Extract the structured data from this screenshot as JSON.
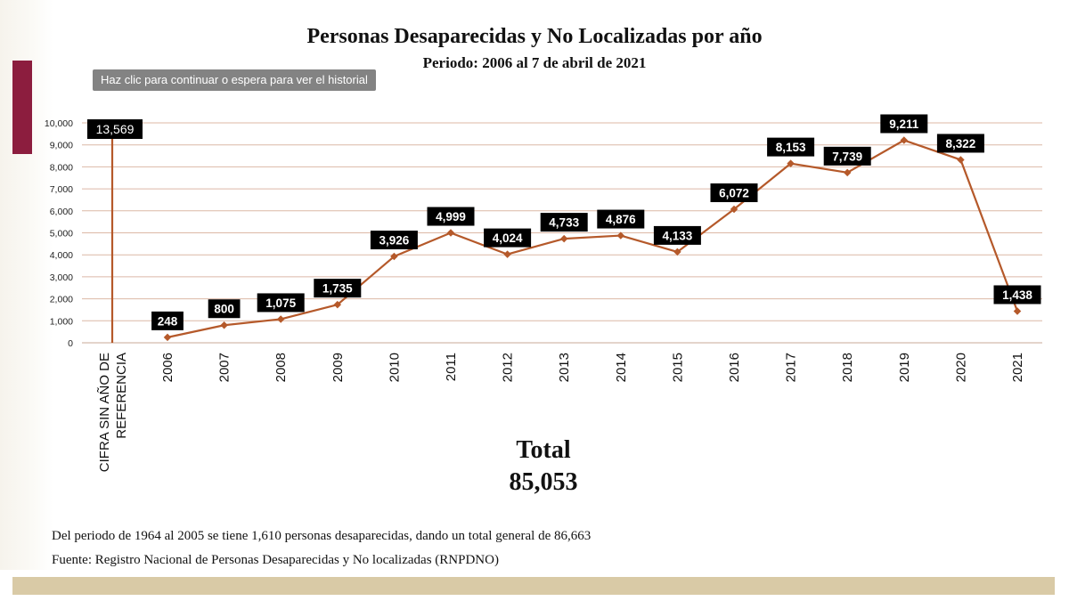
{
  "title": "Personas Desaparecidas y No Localizadas por año",
  "subtitle": "Periodo: 2006 al 7 de abril de 2021",
  "overlay": {
    "tooltip": "Haz clic para continuar o espera para ver el historial"
  },
  "colors": {
    "line": "#b5592a",
    "grid": "#dcb8a6",
    "label_bg": "#000000",
    "label_text": "#ffffff",
    "accent": "#8c1d3e",
    "footer_band": "#d9caa6"
  },
  "total": {
    "label": "Total",
    "value": "85,053"
  },
  "notes": {
    "period_note": "Del periodo de 1964 al 2005 se tiene 1,610 personas desaparecidas, dando un total general de 86,663",
    "source": "Fuente: Registro Nacional de Personas Desaparecidas y No localizadas (RNPDNO)"
  },
  "chart_data": {
    "type": "line",
    "title": "Personas Desaparecidas y No Localizadas por año",
    "xlabel": "",
    "ylabel": "",
    "ylim": [
      0,
      10000
    ],
    "yticks": [
      0,
      1000,
      2000,
      3000,
      4000,
      5000,
      6000,
      7000,
      8000,
      9000,
      10000
    ],
    "ytick_labels": [
      "0",
      "1,000",
      "2,000",
      "3,000",
      "4,000",
      "5,000",
      "6,000",
      "7,000",
      "8,000",
      "9,000",
      "10,000"
    ],
    "grid": true,
    "reference_category": {
      "label_lines": [
        "CIFRA SIN AÑO DE",
        "REFERENCIA"
      ],
      "value": 13569,
      "value_label": "13,569"
    },
    "categories": [
      "2006",
      "2007",
      "2008",
      "2009",
      "2010",
      "2011",
      "2012",
      "2013",
      "2014",
      "2015",
      "2016",
      "2017",
      "2018",
      "2019",
      "2020",
      "2021"
    ],
    "values": [
      248,
      800,
      1075,
      1735,
      3926,
      4999,
      4024,
      4733,
      4876,
      4133,
      6072,
      8153,
      7739,
      9211,
      8322,
      1438
    ],
    "value_labels": [
      "248",
      "800",
      "1,075",
      "1,735",
      "3,926",
      "4,999",
      "4,024",
      "4,733",
      "4,876",
      "4,133",
      "6,072",
      "8,153",
      "7,739",
      "9,211",
      "8,322",
      "1,438"
    ],
    "label_side": [
      "above",
      "above",
      "above",
      "above",
      "above",
      "above",
      "above",
      "above",
      "above",
      "above",
      "above",
      "above",
      "above",
      "above",
      "above",
      "above"
    ]
  }
}
